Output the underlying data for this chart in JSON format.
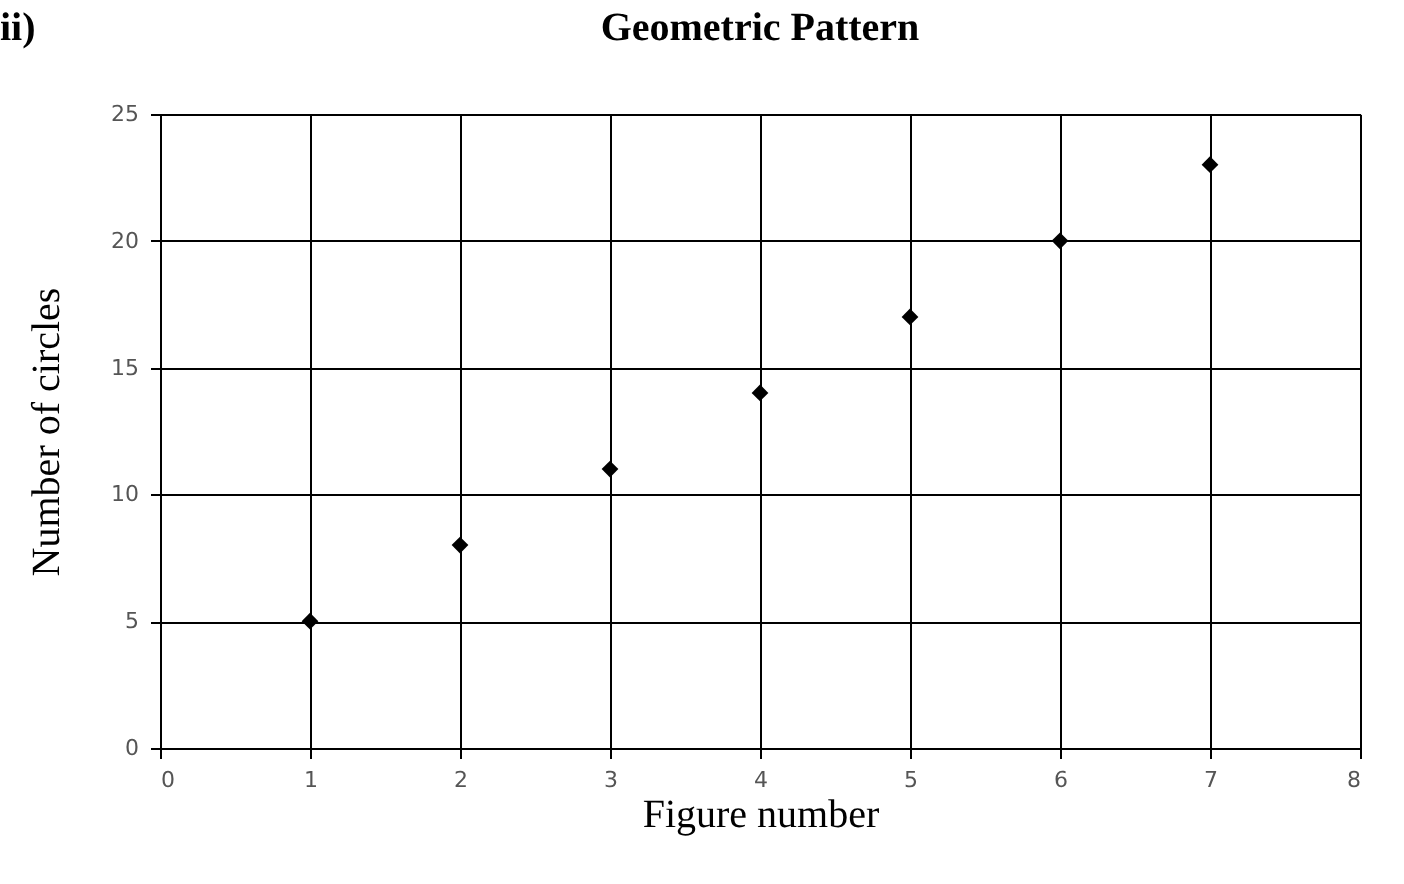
{
  "chart_data": {
    "type": "scatter",
    "title": "Geometric Pattern",
    "xlabel": "Figure number",
    "ylabel": "Number of circles",
    "annotations": [
      "ii)"
    ],
    "x": [
      1,
      2,
      3,
      4,
      5,
      6,
      7
    ],
    "values": [
      5,
      8,
      11,
      14,
      17,
      20,
      23
    ],
    "color": "#000000",
    "xlim": [
      0,
      8
    ],
    "xticks": [
      0,
      1,
      2,
      3,
      4,
      5,
      6,
      7,
      8
    ],
    "ylim": [
      0,
      25
    ],
    "yticks": [
      0,
      5,
      10,
      15,
      20,
      25
    ],
    "grid": true,
    "marker": "diamond"
  }
}
